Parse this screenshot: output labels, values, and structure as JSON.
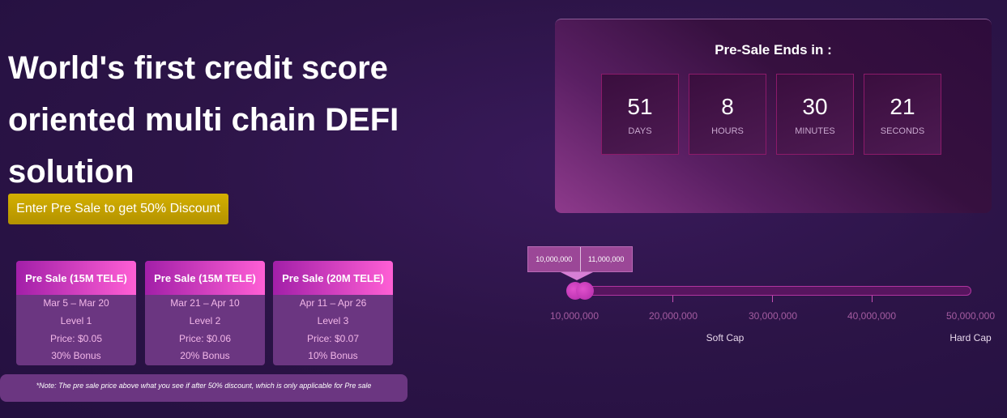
{
  "hero": {
    "title": "World's first credit score oriented multi chain DEFI solution",
    "cta": "Enter Pre Sale to get 50% Discount"
  },
  "cards": [
    {
      "title": "Pre Sale (15M TELE)",
      "dates": "Mar 5 – Mar 20",
      "level": "Level 1",
      "price": "Price: $0.05",
      "bonus": "30% Bonus"
    },
    {
      "title": "Pre Sale (15M TELE)",
      "dates": "Mar 21 – Apr 10",
      "level": "Level 2",
      "price": "Price: $0.06",
      "bonus": "20% Bonus"
    },
    {
      "title": "Pre Sale (20M TELE)",
      "dates": "Apr 11 – Apr 26",
      "level": "Level 3",
      "price": "Price: $0.07",
      "bonus": "10% Bonus"
    }
  ],
  "note": "*Note: The pre sale price above what you see if after 50% discount, which is only applicable for Pre sale",
  "countdown": {
    "title": "Pre-Sale Ends in :",
    "units": [
      {
        "value": "51",
        "label": "DAYS"
      },
      {
        "value": "8",
        "label": "HOURS"
      },
      {
        "value": "30",
        "label": "MINUTES"
      },
      {
        "value": "21",
        "label": "SECONDS"
      }
    ]
  },
  "slider": {
    "range_low": "10,000,000",
    "range_high": "11,000,000",
    "ticks": [
      "10,000,000",
      "20,000,000",
      "30,000,000",
      "40,000,000",
      "50,000,000"
    ],
    "soft_cap": "Soft Cap",
    "hard_cap": "Hard Cap"
  }
}
